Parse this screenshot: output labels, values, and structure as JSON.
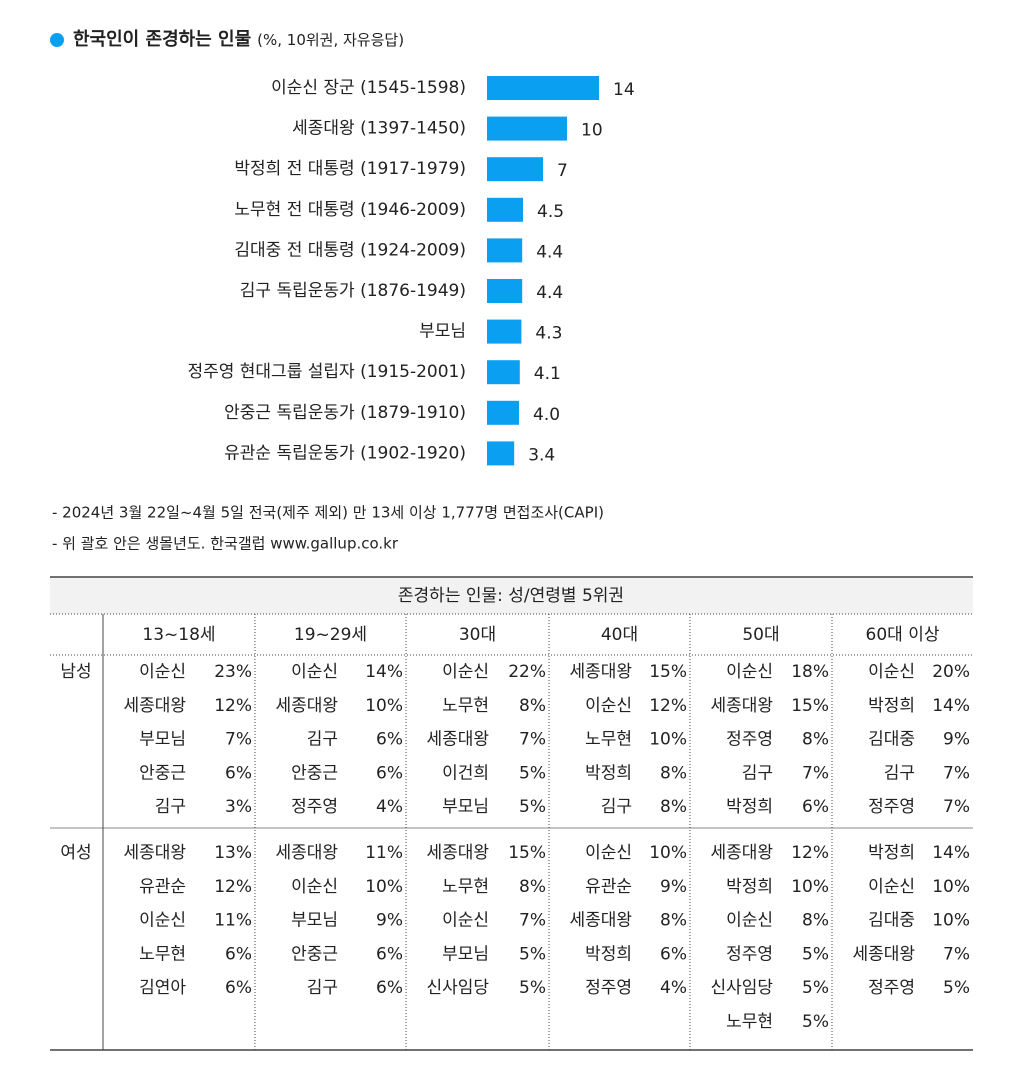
{
  "chart_data": {
    "type": "bar",
    "orientation": "horizontal",
    "title": "한국인이 존경하는 인물",
    "subtitle": "(%, 10위권, 자유응답)",
    "categories": [
      "이순신 장군 (1545-1598)",
      "세종대왕 (1397-1450)",
      "박정희 전 대통령 (1917-1979)",
      "노무현 전 대통령 (1946-2009)",
      "김대중 전 대통령 (1924-2009)",
      "김구 독립운동가 (1876-1949)",
      "부모님",
      "정주영 현대그룹 설립자 (1915-2001)",
      "안중근 독립운동가 (1879-1910)",
      "유관순 독립운동가 (1902-1920)"
    ],
    "values": [
      14,
      10,
      7,
      4.5,
      4.4,
      4.4,
      4.3,
      4.1,
      4.0,
      3.4
    ],
    "value_labels": [
      "14",
      "10",
      "7",
      "4.5",
      "4.4",
      "4.4",
      "4.3",
      "4.1",
      "4.0",
      "3.4"
    ],
    "color": "#0a9ff0"
  },
  "notes": [
    "- 2024년 3월 22일~4월 5일 전국(제주 제외) 만 13세 이상 1,777명 면접조사(CAPI)",
    "- 위 괄호 안은 생몰년도. 한국갤럽 www.gallup.co.kr"
  ],
  "table": {
    "title": "존경하는 인물: 성/연령별 5위권",
    "columns": [
      "13~18세",
      "19~29세",
      "30대",
      "40대",
      "50대",
      "60대 이상"
    ],
    "groups": [
      {
        "label": "남성",
        "cells": [
          [
            {
              "name": "이순신",
              "pct": "23%"
            },
            {
              "name": "세종대왕",
              "pct": "12%"
            },
            {
              "name": "부모님",
              "pct": "7%"
            },
            {
              "name": "안중근",
              "pct": "6%"
            },
            {
              "name": "김구",
              "pct": "3%"
            }
          ],
          [
            {
              "name": "이순신",
              "pct": "14%"
            },
            {
              "name": "세종대왕",
              "pct": "10%"
            },
            {
              "name": "김구",
              "pct": "6%"
            },
            {
              "name": "안중근",
              "pct": "6%"
            },
            {
              "name": "정주영",
              "pct": "4%"
            }
          ],
          [
            {
              "name": "이순신",
              "pct": "22%"
            },
            {
              "name": "노무현",
              "pct": "8%"
            },
            {
              "name": "세종대왕",
              "pct": "7%"
            },
            {
              "name": "이건희",
              "pct": "5%"
            },
            {
              "name": "부모님",
              "pct": "5%"
            }
          ],
          [
            {
              "name": "세종대왕",
              "pct": "15%"
            },
            {
              "name": "이순신",
              "pct": "12%"
            },
            {
              "name": "노무현",
              "pct": "10%"
            },
            {
              "name": "박정희",
              "pct": "8%"
            },
            {
              "name": "김구",
              "pct": "8%"
            }
          ],
          [
            {
              "name": "이순신",
              "pct": "18%"
            },
            {
              "name": "세종대왕",
              "pct": "15%"
            },
            {
              "name": "정주영",
              "pct": "8%"
            },
            {
              "name": "김구",
              "pct": "7%"
            },
            {
              "name": "박정희",
              "pct": "6%"
            }
          ],
          [
            {
              "name": "이순신",
              "pct": "20%"
            },
            {
              "name": "박정희",
              "pct": "14%"
            },
            {
              "name": "김대중",
              "pct": "9%"
            },
            {
              "name": "김구",
              "pct": "7%"
            },
            {
              "name": "정주영",
              "pct": "7%"
            }
          ]
        ]
      },
      {
        "label": "여성",
        "cells": [
          [
            {
              "name": "세종대왕",
              "pct": "13%"
            },
            {
              "name": "유관순",
              "pct": "12%"
            },
            {
              "name": "이순신",
              "pct": "11%"
            },
            {
              "name": "노무현",
              "pct": "6%"
            },
            {
              "name": "김연아",
              "pct": "6%"
            }
          ],
          [
            {
              "name": "세종대왕",
              "pct": "11%"
            },
            {
              "name": "이순신",
              "pct": "10%"
            },
            {
              "name": "부모님",
              "pct": "9%"
            },
            {
              "name": "안중근",
              "pct": "6%"
            },
            {
              "name": "김구",
              "pct": "6%"
            }
          ],
          [
            {
              "name": "세종대왕",
              "pct": "15%"
            },
            {
              "name": "노무현",
              "pct": "8%"
            },
            {
              "name": "이순신",
              "pct": "7%"
            },
            {
              "name": "부모님",
              "pct": "5%"
            },
            {
              "name": "신사임당",
              "pct": "5%"
            }
          ],
          [
            {
              "name": "이순신",
              "pct": "10%"
            },
            {
              "name": "유관순",
              "pct": "9%"
            },
            {
              "name": "세종대왕",
              "pct": "8%"
            },
            {
              "name": "박정희",
              "pct": "6%"
            },
            {
              "name": "정주영",
              "pct": "4%"
            }
          ],
          [
            {
              "name": "세종대왕",
              "pct": "12%"
            },
            {
              "name": "박정희",
              "pct": "10%"
            },
            {
              "name": "이순신",
              "pct": "8%"
            },
            {
              "name": "정주영",
              "pct": "5%"
            },
            {
              "name": "신사임당",
              "pct": "5%"
            },
            {
              "name": "노무현",
              "pct": "5%"
            }
          ],
          [
            {
              "name": "박정희",
              "pct": "14%"
            },
            {
              "name": "이순신",
              "pct": "10%"
            },
            {
              "name": "김대중",
              "pct": "10%"
            },
            {
              "name": "세종대왕",
              "pct": "7%"
            },
            {
              "name": "정주영",
              "pct": "5%"
            }
          ]
        ]
      }
    ]
  }
}
